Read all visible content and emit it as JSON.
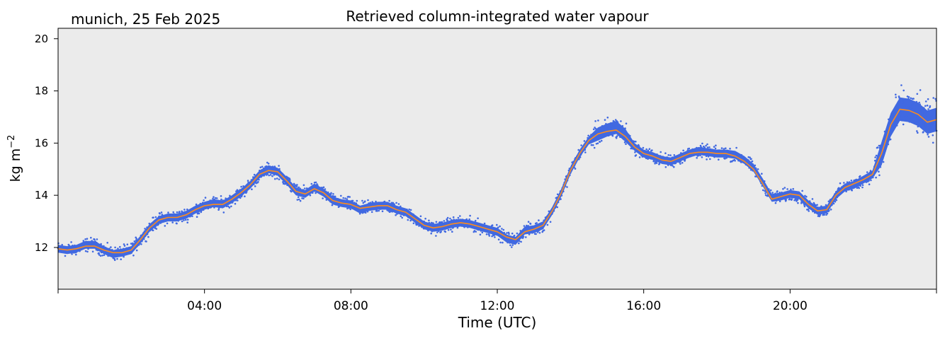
{
  "chart_data": {
    "type": "line",
    "title": "Retrieved column-integrated water vapour",
    "subtitle": "munich, 25 Feb 2025",
    "xlabel": "Time (UTC)",
    "ylabel_base": "kg m",
    "ylabel_sup": "−2",
    "xlim": [
      0,
      24
    ],
    "ylim": [
      10.4,
      20.4
    ],
    "x_ticks": [
      {
        "value": 4,
        "label": "04:00"
      },
      {
        "value": 8,
        "label": "08:00"
      },
      {
        "value": 12,
        "label": "12:00"
      },
      {
        "value": 16,
        "label": "16:00"
      },
      {
        "value": 20,
        "label": "20:00"
      }
    ],
    "x_minor_ticks": [
      0,
      24
    ],
    "y_ticks": [
      {
        "value": 12,
        "label": "12"
      },
      {
        "value": 14,
        "label": "14"
      },
      {
        "value": 16,
        "label": "16"
      },
      {
        "value": 18,
        "label": "18"
      },
      {
        "value": 20,
        "label": "20"
      }
    ],
    "plot_background": "#ebebeb",
    "grid": false,
    "series": [
      {
        "role": "retrieval",
        "style": "scatter",
        "color": "#4169e1",
        "x": [
          0.0,
          0.25,
          0.5,
          0.75,
          1.0,
          1.25,
          1.5,
          1.75,
          2.0,
          2.25,
          2.5,
          2.75,
          3.0,
          3.25,
          3.5,
          3.75,
          4.0,
          4.25,
          4.5,
          4.75,
          5.0,
          5.25,
          5.5,
          5.75,
          6.0,
          6.25,
          6.5,
          6.75,
          7.0,
          7.25,
          7.5,
          7.75,
          8.0,
          8.25,
          8.5,
          8.75,
          9.0,
          9.25,
          9.5,
          9.75,
          10.0,
          10.25,
          10.5,
          10.75,
          11.0,
          11.25,
          11.5,
          11.75,
          12.0,
          12.25,
          12.5,
          12.75,
          13.0,
          13.25,
          13.5,
          13.75,
          14.0,
          14.25,
          14.5,
          14.75,
          15.0,
          15.25,
          15.5,
          15.75,
          16.0,
          16.25,
          16.5,
          16.75,
          17.0,
          17.25,
          17.5,
          17.75,
          18.0,
          18.25,
          18.5,
          18.75,
          19.0,
          19.25,
          19.5,
          19.75,
          20.0,
          20.25,
          20.5,
          20.75,
          21.0,
          21.25,
          21.5,
          21.75,
          22.0,
          22.25,
          22.5,
          22.75,
          23.0,
          23.25,
          23.5,
          23.75,
          24.0
        ],
        "y": [
          11.95,
          11.9,
          11.95,
          12.1,
          12.1,
          11.9,
          11.75,
          11.8,
          11.9,
          12.3,
          12.75,
          13.05,
          13.15,
          13.15,
          13.25,
          13.45,
          13.6,
          13.7,
          13.65,
          13.85,
          14.1,
          14.4,
          14.8,
          15.0,
          14.9,
          14.55,
          14.15,
          14.05,
          14.3,
          14.1,
          13.8,
          13.7,
          13.65,
          13.45,
          13.55,
          13.6,
          13.6,
          13.45,
          13.35,
          13.1,
          12.85,
          12.75,
          12.8,
          12.9,
          12.95,
          12.9,
          12.8,
          12.7,
          12.6,
          12.35,
          12.25,
          12.65,
          12.7,
          12.85,
          13.4,
          14.1,
          14.95,
          15.6,
          16.1,
          16.35,
          16.5,
          16.6,
          16.3,
          15.85,
          15.6,
          15.5,
          15.35,
          15.3,
          15.45,
          15.6,
          15.7,
          15.65,
          15.6,
          15.6,
          15.55,
          15.35,
          15.05,
          14.5,
          13.9,
          13.95,
          14.05,
          14.0,
          13.65,
          13.4,
          13.45,
          14.0,
          14.3,
          14.4,
          14.6,
          14.8,
          15.6,
          16.7,
          17.3,
          17.25,
          17.1,
          16.8,
          16.9
        ]
      },
      {
        "role": "smoothed",
        "style": "line",
        "color": "#ff8c1a",
        "x": [
          0.0,
          0.25,
          0.5,
          0.75,
          1.0,
          1.25,
          1.5,
          1.75,
          2.0,
          2.25,
          2.5,
          2.75,
          3.0,
          3.25,
          3.5,
          3.75,
          4.0,
          4.25,
          4.5,
          4.75,
          5.0,
          5.25,
          5.5,
          5.75,
          6.0,
          6.25,
          6.5,
          6.75,
          7.0,
          7.25,
          7.5,
          7.75,
          8.0,
          8.25,
          8.5,
          8.75,
          9.0,
          9.25,
          9.5,
          9.75,
          10.0,
          10.25,
          10.5,
          10.75,
          11.0,
          11.25,
          11.5,
          11.75,
          12.0,
          12.25,
          12.5,
          12.75,
          13.0,
          13.25,
          13.5,
          13.75,
          14.0,
          14.25,
          14.5,
          14.75,
          15.0,
          15.25,
          15.5,
          15.75,
          16.0,
          16.25,
          16.5,
          16.75,
          17.0,
          17.25,
          17.5,
          17.75,
          18.0,
          18.25,
          18.5,
          18.75,
          19.0,
          19.25,
          19.5,
          19.75,
          20.0,
          20.25,
          20.5,
          20.75,
          21.0,
          21.25,
          21.5,
          21.75,
          22.0,
          22.25,
          22.5,
          22.75,
          23.0,
          23.25,
          23.5,
          23.75,
          24.0
        ],
        "y": [
          11.95,
          11.9,
          11.95,
          12.05,
          12.05,
          11.9,
          11.8,
          11.8,
          11.9,
          12.3,
          12.75,
          13.05,
          13.15,
          13.15,
          13.25,
          13.45,
          13.6,
          13.65,
          13.65,
          13.85,
          14.1,
          14.4,
          14.8,
          14.95,
          14.9,
          14.55,
          14.15,
          14.05,
          14.25,
          14.1,
          13.8,
          13.7,
          13.65,
          13.5,
          13.55,
          13.6,
          13.6,
          13.45,
          13.35,
          13.1,
          12.85,
          12.75,
          12.8,
          12.9,
          12.95,
          12.9,
          12.8,
          12.7,
          12.6,
          12.4,
          12.3,
          12.6,
          12.7,
          12.85,
          13.4,
          14.1,
          14.95,
          15.6,
          16.1,
          16.35,
          16.45,
          16.5,
          16.25,
          15.85,
          15.6,
          15.5,
          15.35,
          15.3,
          15.45,
          15.6,
          15.65,
          15.65,
          15.6,
          15.6,
          15.5,
          15.3,
          15.0,
          14.45,
          13.85,
          13.95,
          14.05,
          14.0,
          13.65,
          13.4,
          13.45,
          14.0,
          14.3,
          14.45,
          14.6,
          14.8,
          15.6,
          16.7,
          17.3,
          17.25,
          17.1,
          16.8,
          16.9
        ]
      }
    ]
  }
}
